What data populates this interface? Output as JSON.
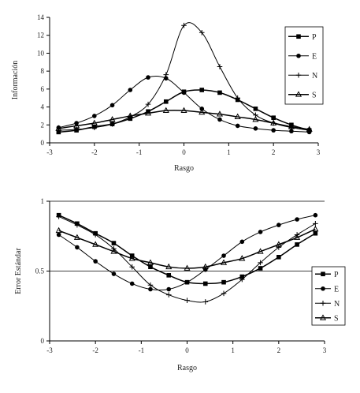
{
  "chart_data": [
    {
      "type": "line",
      "xlabel": "Rasgo",
      "ylabel": "Información",
      "xlim": [
        -3,
        3
      ],
      "ylim": [
        0,
        14
      ],
      "xticks": [
        "-3",
        "-2",
        "-1",
        "0",
        "1",
        "2",
        "3"
      ],
      "yticks": [
        "0",
        "2",
        "4",
        "6",
        "8",
        "10",
        "12",
        "14"
      ],
      "grid": false,
      "legend": "right",
      "series": [
        {
          "name": "P",
          "marker": "square",
          "x": [
            -2.8,
            -2.4,
            -2.0,
            -1.6,
            -1.2,
            -0.8,
            -0.4,
            0.0,
            0.4,
            0.8,
            1.2,
            1.6,
            2.0,
            2.4,
            2.8
          ],
          "y": [
            1.2,
            1.4,
            1.8,
            2.1,
            2.7,
            3.5,
            4.6,
            5.7,
            5.9,
            5.6,
            4.8,
            3.8,
            2.8,
            2.0,
            1.4
          ]
        },
        {
          "name": "E",
          "marker": "circle",
          "x": [
            -2.8,
            -2.4,
            -2.0,
            -1.6,
            -1.2,
            -0.8,
            -0.4,
            0.0,
            0.4,
            0.8,
            1.2,
            1.6,
            2.0,
            2.4,
            2.8
          ],
          "y": [
            1.7,
            2.2,
            3.0,
            4.2,
            5.9,
            7.3,
            7.2,
            5.6,
            3.8,
            2.6,
            1.9,
            1.6,
            1.4,
            1.3,
            1.2
          ]
        },
        {
          "name": "N",
          "marker": "plus",
          "x": [
            -2.8,
            -2.4,
            -2.0,
            -1.6,
            -1.2,
            -0.8,
            -0.4,
            0.0,
            0.4,
            0.8,
            1.2,
            1.6,
            2.0,
            2.4,
            2.8
          ],
          "y": [
            1.4,
            1.5,
            1.7,
            2.1,
            2.9,
            4.3,
            7.6,
            13.1,
            12.3,
            8.5,
            5.0,
            3.1,
            2.2,
            1.7,
            1.4
          ]
        },
        {
          "name": "S",
          "marker": "triangle",
          "x": [
            -2.8,
            -2.4,
            -2.0,
            -1.6,
            -1.2,
            -0.8,
            -0.4,
            0.0,
            0.4,
            0.8,
            1.2,
            1.6,
            2.0,
            2.4,
            2.8
          ],
          "y": [
            1.6,
            1.9,
            2.2,
            2.6,
            3.0,
            3.3,
            3.6,
            3.6,
            3.4,
            3.2,
            2.9,
            2.6,
            2.2,
            1.8,
            1.5
          ]
        }
      ]
    },
    {
      "type": "line",
      "xlabel": "Rasgo",
      "ylabel": "Error Estándar",
      "xlim": [
        -3,
        3
      ],
      "ylim": [
        0,
        1
      ],
      "xticks": [
        "-3",
        "-2",
        "-1",
        "0",
        "1",
        "2",
        "3"
      ],
      "yticks": [
        "0",
        "0.5",
        "1"
      ],
      "grid": true,
      "legend": "right",
      "series": [
        {
          "name": "P",
          "marker": "square",
          "x": [
            -2.8,
            -2.4,
            -2.0,
            -1.6,
            -1.2,
            -0.8,
            -0.4,
            0.0,
            0.4,
            0.8,
            1.2,
            1.6,
            2.0,
            2.4,
            2.8
          ],
          "y": [
            0.9,
            0.84,
            0.77,
            0.7,
            0.61,
            0.53,
            0.47,
            0.42,
            0.41,
            0.42,
            0.46,
            0.52,
            0.6,
            0.69,
            0.77
          ]
        },
        {
          "name": "E",
          "marker": "circle",
          "x": [
            -2.8,
            -2.4,
            -2.0,
            -1.6,
            -1.2,
            -0.8,
            -0.4,
            0.0,
            0.4,
            0.8,
            1.2,
            1.6,
            2.0,
            2.4,
            2.8
          ],
          "y": [
            0.76,
            0.67,
            0.57,
            0.48,
            0.41,
            0.37,
            0.37,
            0.42,
            0.51,
            0.61,
            0.71,
            0.78,
            0.83,
            0.87,
            0.9
          ]
        },
        {
          "name": "N",
          "marker": "plus",
          "x": [
            -2.8,
            -2.4,
            -2.0,
            -1.6,
            -1.2,
            -0.8,
            -0.4,
            0.0,
            0.4,
            0.8,
            1.2,
            1.6,
            2.0,
            2.4,
            2.8
          ],
          "y": [
            0.89,
            0.83,
            0.76,
            0.66,
            0.53,
            0.4,
            0.33,
            0.29,
            0.28,
            0.34,
            0.44,
            0.56,
            0.67,
            0.76,
            0.84
          ]
        },
        {
          "name": "S",
          "marker": "triangle",
          "x": [
            -2.8,
            -2.4,
            -2.0,
            -1.6,
            -1.2,
            -0.8,
            -0.4,
            0.0,
            0.4,
            0.8,
            1.2,
            1.6,
            2.0,
            2.4,
            2.8
          ],
          "y": [
            0.79,
            0.74,
            0.69,
            0.64,
            0.59,
            0.56,
            0.53,
            0.52,
            0.53,
            0.56,
            0.59,
            0.64,
            0.69,
            0.74,
            0.8
          ]
        }
      ]
    }
  ]
}
